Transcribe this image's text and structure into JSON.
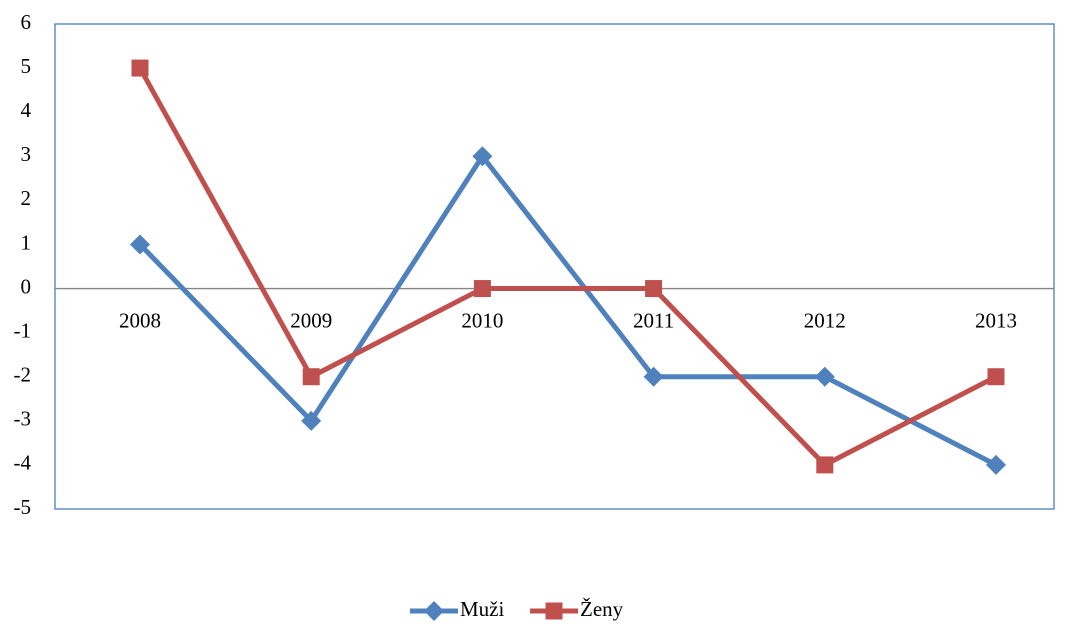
{
  "chart_data": {
    "type": "line",
    "categories": [
      "2008",
      "2009",
      "2010",
      "2011",
      "2012",
      "2013"
    ],
    "series": [
      {
        "name": "Muži",
        "color": "#4f81bd",
        "marker": "diamond",
        "values": [
          1,
          -3,
          3,
          -2,
          -2,
          -4
        ]
      },
      {
        "name": "Ženy",
        "color": "#c0504d",
        "marker": "square",
        "values": [
          5,
          -2,
          0,
          0,
          -4,
          -2
        ]
      }
    ],
    "ylim": [
      -5,
      6
    ],
    "yticks": [
      -5,
      -4,
      -3,
      -2,
      -1,
      0,
      1,
      2,
      3,
      4,
      5,
      6
    ],
    "grid": false,
    "legend": "bottom"
  }
}
